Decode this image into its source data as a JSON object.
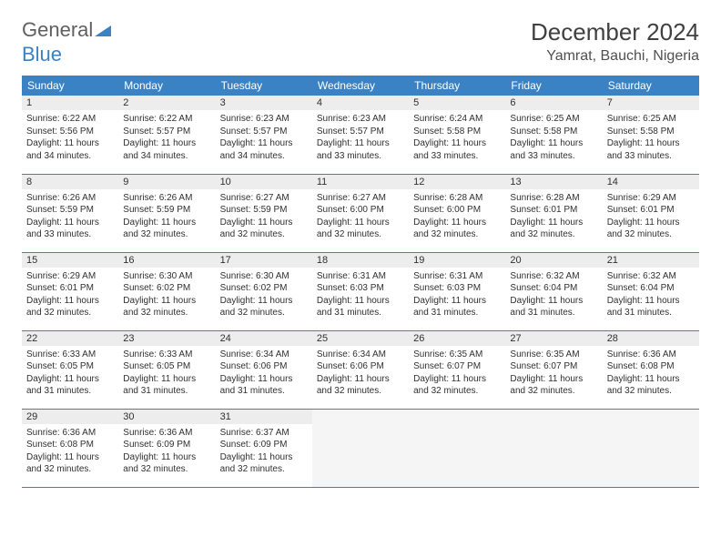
{
  "logo": {
    "part1": "General",
    "part2": "Blue"
  },
  "title": "December 2024",
  "location": "Yamrat, Bauchi, Nigeria",
  "colors": {
    "header_bg": "#3b82c4",
    "header_text": "#ffffff",
    "daynum_bg": "#ededed",
    "cell_border": "#3b82c4"
  },
  "weekdays": [
    "Sunday",
    "Monday",
    "Tuesday",
    "Wednesday",
    "Thursday",
    "Friday",
    "Saturday"
  ],
  "weeks": [
    [
      {
        "n": "1",
        "sunrise": "Sunrise: 6:22 AM",
        "sunset": "Sunset: 5:56 PM",
        "daylight": "Daylight: 11 hours and 34 minutes."
      },
      {
        "n": "2",
        "sunrise": "Sunrise: 6:22 AM",
        "sunset": "Sunset: 5:57 PM",
        "daylight": "Daylight: 11 hours and 34 minutes."
      },
      {
        "n": "3",
        "sunrise": "Sunrise: 6:23 AM",
        "sunset": "Sunset: 5:57 PM",
        "daylight": "Daylight: 11 hours and 34 minutes."
      },
      {
        "n": "4",
        "sunrise": "Sunrise: 6:23 AM",
        "sunset": "Sunset: 5:57 PM",
        "daylight": "Daylight: 11 hours and 33 minutes."
      },
      {
        "n": "5",
        "sunrise": "Sunrise: 6:24 AM",
        "sunset": "Sunset: 5:58 PM",
        "daylight": "Daylight: 11 hours and 33 minutes."
      },
      {
        "n": "6",
        "sunrise": "Sunrise: 6:25 AM",
        "sunset": "Sunset: 5:58 PM",
        "daylight": "Daylight: 11 hours and 33 minutes."
      },
      {
        "n": "7",
        "sunrise": "Sunrise: 6:25 AM",
        "sunset": "Sunset: 5:58 PM",
        "daylight": "Daylight: 11 hours and 33 minutes."
      }
    ],
    [
      {
        "n": "8",
        "sunrise": "Sunrise: 6:26 AM",
        "sunset": "Sunset: 5:59 PM",
        "daylight": "Daylight: 11 hours and 33 minutes."
      },
      {
        "n": "9",
        "sunrise": "Sunrise: 6:26 AM",
        "sunset": "Sunset: 5:59 PM",
        "daylight": "Daylight: 11 hours and 32 minutes."
      },
      {
        "n": "10",
        "sunrise": "Sunrise: 6:27 AM",
        "sunset": "Sunset: 5:59 PM",
        "daylight": "Daylight: 11 hours and 32 minutes."
      },
      {
        "n": "11",
        "sunrise": "Sunrise: 6:27 AM",
        "sunset": "Sunset: 6:00 PM",
        "daylight": "Daylight: 11 hours and 32 minutes."
      },
      {
        "n": "12",
        "sunrise": "Sunrise: 6:28 AM",
        "sunset": "Sunset: 6:00 PM",
        "daylight": "Daylight: 11 hours and 32 minutes."
      },
      {
        "n": "13",
        "sunrise": "Sunrise: 6:28 AM",
        "sunset": "Sunset: 6:01 PM",
        "daylight": "Daylight: 11 hours and 32 minutes."
      },
      {
        "n": "14",
        "sunrise": "Sunrise: 6:29 AM",
        "sunset": "Sunset: 6:01 PM",
        "daylight": "Daylight: 11 hours and 32 minutes."
      }
    ],
    [
      {
        "n": "15",
        "sunrise": "Sunrise: 6:29 AM",
        "sunset": "Sunset: 6:01 PM",
        "daylight": "Daylight: 11 hours and 32 minutes."
      },
      {
        "n": "16",
        "sunrise": "Sunrise: 6:30 AM",
        "sunset": "Sunset: 6:02 PM",
        "daylight": "Daylight: 11 hours and 32 minutes."
      },
      {
        "n": "17",
        "sunrise": "Sunrise: 6:30 AM",
        "sunset": "Sunset: 6:02 PM",
        "daylight": "Daylight: 11 hours and 32 minutes."
      },
      {
        "n": "18",
        "sunrise": "Sunrise: 6:31 AM",
        "sunset": "Sunset: 6:03 PM",
        "daylight": "Daylight: 11 hours and 31 minutes."
      },
      {
        "n": "19",
        "sunrise": "Sunrise: 6:31 AM",
        "sunset": "Sunset: 6:03 PM",
        "daylight": "Daylight: 11 hours and 31 minutes."
      },
      {
        "n": "20",
        "sunrise": "Sunrise: 6:32 AM",
        "sunset": "Sunset: 6:04 PM",
        "daylight": "Daylight: 11 hours and 31 minutes."
      },
      {
        "n": "21",
        "sunrise": "Sunrise: 6:32 AM",
        "sunset": "Sunset: 6:04 PM",
        "daylight": "Daylight: 11 hours and 31 minutes."
      }
    ],
    [
      {
        "n": "22",
        "sunrise": "Sunrise: 6:33 AM",
        "sunset": "Sunset: 6:05 PM",
        "daylight": "Daylight: 11 hours and 31 minutes."
      },
      {
        "n": "23",
        "sunrise": "Sunrise: 6:33 AM",
        "sunset": "Sunset: 6:05 PM",
        "daylight": "Daylight: 11 hours and 31 minutes."
      },
      {
        "n": "24",
        "sunrise": "Sunrise: 6:34 AM",
        "sunset": "Sunset: 6:06 PM",
        "daylight": "Daylight: 11 hours and 31 minutes."
      },
      {
        "n": "25",
        "sunrise": "Sunrise: 6:34 AM",
        "sunset": "Sunset: 6:06 PM",
        "daylight": "Daylight: 11 hours and 32 minutes."
      },
      {
        "n": "26",
        "sunrise": "Sunrise: 6:35 AM",
        "sunset": "Sunset: 6:07 PM",
        "daylight": "Daylight: 11 hours and 32 minutes."
      },
      {
        "n": "27",
        "sunrise": "Sunrise: 6:35 AM",
        "sunset": "Sunset: 6:07 PM",
        "daylight": "Daylight: 11 hours and 32 minutes."
      },
      {
        "n": "28",
        "sunrise": "Sunrise: 6:36 AM",
        "sunset": "Sunset: 6:08 PM",
        "daylight": "Daylight: 11 hours and 32 minutes."
      }
    ],
    [
      {
        "n": "29",
        "sunrise": "Sunrise: 6:36 AM",
        "sunset": "Sunset: 6:08 PM",
        "daylight": "Daylight: 11 hours and 32 minutes."
      },
      {
        "n": "30",
        "sunrise": "Sunrise: 6:36 AM",
        "sunset": "Sunset: 6:09 PM",
        "daylight": "Daylight: 11 hours and 32 minutes."
      },
      {
        "n": "31",
        "sunrise": "Sunrise: 6:37 AM",
        "sunset": "Sunset: 6:09 PM",
        "daylight": "Daylight: 11 hours and 32 minutes."
      },
      null,
      null,
      null,
      null
    ]
  ]
}
